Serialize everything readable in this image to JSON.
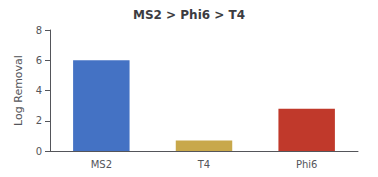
{
  "chart_data": {
    "type": "bar",
    "title": "MS2 > Phi6 > T4",
    "categories": [
      "MS2",
      "T4",
      "Phi6"
    ],
    "values": [
      6.0,
      0.7,
      2.8
    ],
    "colors": [
      "#4472C4",
      "#C8A84B",
      "#C0392B"
    ],
    "ylabel": "Log Removal",
    "ylim": [
      0,
      8
    ],
    "yticks": [
      0,
      2,
      4,
      6,
      8
    ],
    "grid": false
  }
}
